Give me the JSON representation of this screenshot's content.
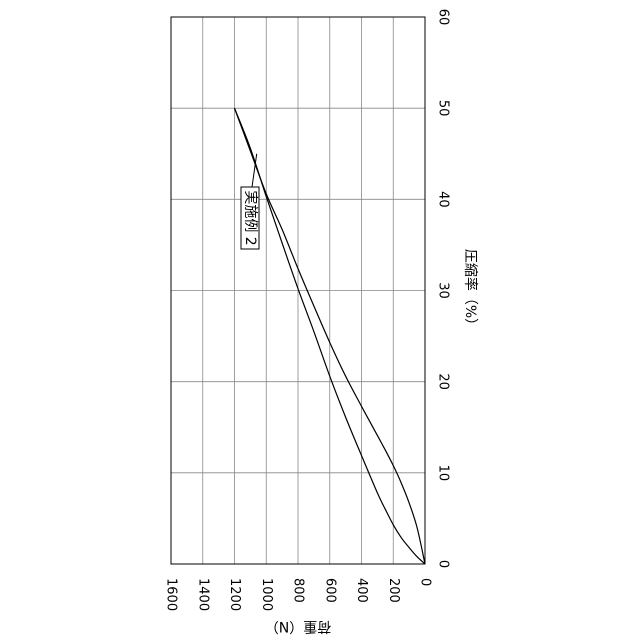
{
  "chart_data": {
    "type": "line",
    "orientation": "rotated-90-clockwise",
    "xlabel": "荷重（N）",
    "ylabel": "圧縮率（%）",
    "x_ticks": [
      "0",
      "200",
      "400",
      "600",
      "800",
      "1000",
      "1200",
      "1400",
      "1600"
    ],
    "y_ticks": [
      "0",
      "10",
      "20",
      "30",
      "40",
      "50",
      "60"
    ],
    "xlim": [
      0,
      1600
    ],
    "ylim": [
      0,
      60
    ],
    "grid": true,
    "annotation": {
      "text": "実施例 2",
      "points_to": "both curves near (1100, 45)"
    },
    "series": [
      {
        "x": [
          0,
          50,
          100,
          150,
          200,
          250,
          300,
          400,
          500,
          600,
          700,
          800,
          900,
          1000,
          1100,
          1200
        ],
        "y": [
          0,
          4.0,
          6.7,
          8.9,
          10.8,
          12.5,
          14.1,
          17.3,
          20.6,
          24.3,
          28.3,
          32.4,
          36.7,
          40.6,
          45.3,
          50
        ]
      },
      {
        "x": [
          0,
          50,
          100,
          150,
          200,
          250,
          300,
          400,
          500,
          600,
          700,
          800,
          900,
          1000,
          1100,
          1200
        ],
        "y": [
          0,
          0.8,
          1.8,
          2.9,
          4.3,
          6.0,
          7.8,
          11.9,
          16.1,
          20.6,
          25.5,
          30.2,
          35.2,
          40.3,
          45.6,
          50
        ]
      }
    ]
  }
}
